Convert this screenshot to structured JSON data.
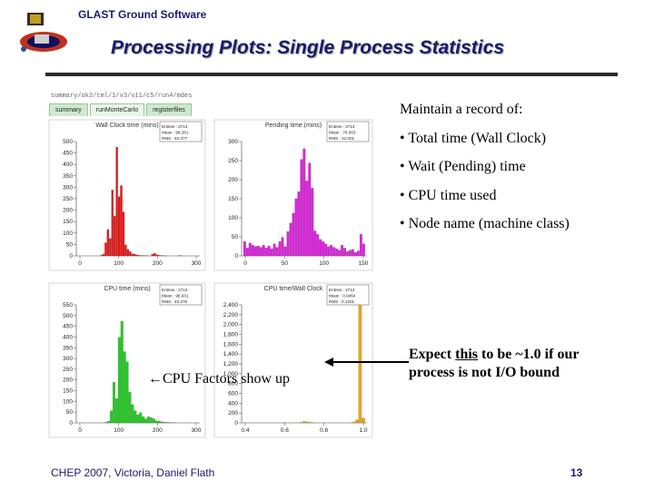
{
  "header": {
    "org": "GLAST Ground Software"
  },
  "title": "Processing Plots:  Single Process Statistics",
  "screenshot": {
    "breadcrumb": "summary/ok2/tml/1/v3/v11/c5/run4/mdes",
    "tabs": [
      "summary",
      "runMonteCarlo",
      "registerfiles"
    ],
    "panels": [
      {
        "title": "Wall Clock time (mins)",
        "stats": [
          "Entries : 2713",
          "Mean : 98.281",
          "RMS : 40.377"
        ],
        "yticks": [
          "500",
          "450",
          "400",
          "350",
          "300",
          "250",
          "200",
          "150",
          "100",
          "50",
          "0"
        ],
        "xticks": [
          "0",
          "100",
          "200",
          "300"
        ],
        "color": "#ee1111",
        "chart_data": {
          "type": "bar",
          "values": [
            0,
            0,
            0,
            0,
            0,
            0,
            0,
            0,
            0,
            0,
            3,
            8,
            60,
            120,
            80,
            300,
            180,
            495,
            270,
            320,
            200,
            50,
            30,
            20,
            10,
            8,
            5,
            3,
            2,
            2,
            1,
            1,
            0,
            8,
            12,
            6,
            3,
            2,
            1,
            1,
            0,
            0,
            0,
            0,
            0,
            2,
            1,
            0,
            0,
            0,
            0,
            0,
            0,
            0
          ],
          "ylim": [
            0,
            520
          ]
        }
      },
      {
        "title": "Pending time (mins)",
        "stats": [
          "Entries : 2713",
          "Mean : 78.003",
          "RMS : 31.001"
        ],
        "yticks": [
          "300",
          "250",
          "200",
          "150",
          "100",
          "50",
          "0"
        ],
        "xticks": [
          "0",
          "50",
          "100",
          "150"
        ],
        "color": "#e020e0",
        "chart_data": {
          "type": "bar",
          "values": [
            40,
            22,
            36,
            30,
            26,
            28,
            24,
            30,
            22,
            28,
            20,
            34,
            24,
            40,
            52,
            26,
            68,
            92,
            120,
            160,
            180,
            270,
            300,
            210,
            260,
            190,
            70,
            60,
            46,
            40,
            34,
            26,
            30,
            24,
            20,
            16,
            30,
            22,
            12,
            16,
            18,
            10,
            14,
            60,
            34
          ],
          "ylim": [
            0,
            320
          ]
        }
      },
      {
        "title": "CPU time (mins)",
        "stats": [
          "Entries : 2713",
          "Mean : 98.631",
          "RMS : 40.378"
        ],
        "yticks": [
          "550",
          "500",
          "450",
          "400",
          "350",
          "300",
          "250",
          "200",
          "150",
          "100",
          "50",
          "0"
        ],
        "xticks": [
          "0",
          "100",
          "200",
          "300"
        ],
        "color": "#22cc22",
        "chart_data": {
          "type": "bar",
          "values": [
            0,
            0,
            0,
            0,
            0,
            0,
            0,
            0,
            0,
            0,
            3,
            8,
            60,
            200,
            120,
            420,
            500,
            350,
            300,
            150,
            90,
            60,
            40,
            50,
            30,
            20,
            30,
            25,
            20,
            10,
            8,
            5,
            3,
            3,
            2,
            1,
            1,
            0,
            0,
            0,
            0,
            0,
            0,
            0,
            0
          ],
          "ylim": [
            0,
            580
          ]
        }
      },
      {
        "title": "CPU time/Wall Clock",
        "stats": [
          "Entries : 2713",
          "Mean : 0.9464",
          "RMS : 0.1201"
        ],
        "yticks": [
          "2,400",
          "2,200",
          "2,000",
          "1,800",
          "1,600",
          "1,400",
          "1,200",
          "1,000",
          "800",
          "600",
          "400",
          "200",
          "0"
        ],
        "xticks": [
          "0.4",
          "0.6",
          "0.8",
          "1.0"
        ],
        "color": "#e8a818",
        "chart_data": {
          "type": "bar",
          "values": [
            0,
            0,
            0,
            0,
            0,
            0,
            0,
            0,
            0,
            0,
            0,
            0,
            5,
            0,
            0,
            0,
            0,
            10,
            30,
            20,
            10,
            5,
            0,
            0,
            0,
            0,
            0,
            0,
            0,
            0,
            0,
            0,
            0,
            20,
            60,
            2500,
            100
          ],
          "ylim": [
            0,
            2500
          ]
        }
      }
    ]
  },
  "bullets": {
    "intro": "Maintain a record of:",
    "items": [
      "• Total time (Wall Clock)",
      "• Wait (Pending) time",
      "• CPU time used",
      "• Node name (machine class)"
    ]
  },
  "notes": {
    "cpu_factors": "←CPU Factors show up",
    "expect_a": "Expect ",
    "expect_this": "this",
    "expect_b": " to be ~1.0 if our process is not I/O bound"
  },
  "footer": {
    "left": "CHEP 2007, Victoria, Daniel Flath",
    "page": "13"
  }
}
